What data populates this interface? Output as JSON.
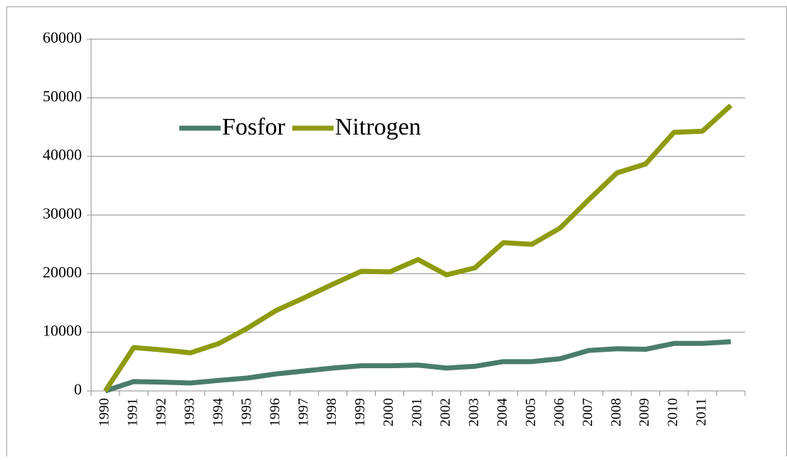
{
  "chart_data": {
    "type": "line",
    "categories": [
      "1990",
      "1991",
      "1992",
      "1993",
      "1994",
      "1995",
      "1996",
      "1997",
      "1998",
      "1999",
      "2000",
      "2001",
      "2002",
      "2003",
      "2004",
      "2005",
      "2006",
      "2007",
      "2008",
      "2009",
      "2010",
      "2011",
      null
    ],
    "series": [
      {
        "name": "Fosfor",
        "color": "#4a7c6c",
        "values": [
          0,
          1600,
          1500,
          1350,
          1800,
          2200,
          2900,
          3400,
          3900,
          4300,
          4300,
          4400,
          3900,
          4200,
          5000,
          5000,
          5500,
          6900,
          7200,
          7100,
          8100,
          8100,
          8400
        ]
      },
      {
        "name": "Nitrogen",
        "color": "#8e9b0f",
        "values": [
          0,
          7400,
          7000,
          6500,
          8100,
          10700,
          13700,
          15900,
          18200,
          20400,
          20300,
          22400,
          19800,
          21000,
          25300,
          25000,
          27800,
          32600,
          37200,
          38700,
          44100,
          44300,
          48700
        ]
      }
    ],
    "ylim": [
      0,
      60000
    ],
    "yticks": [
      0,
      10000,
      20000,
      30000,
      40000,
      50000,
      60000
    ],
    "grid": true,
    "legend": "top-left"
  }
}
